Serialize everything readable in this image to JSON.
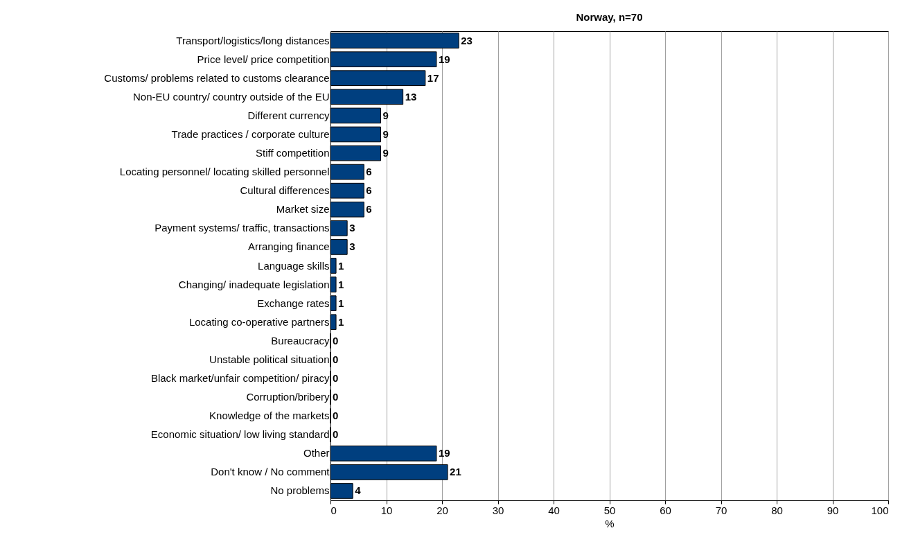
{
  "chart_data": {
    "type": "bar",
    "orientation": "horizontal",
    "title": "Norway, n=70",
    "xlabel": "%",
    "categories": [
      "Transport/logistics/long distances",
      "Price level/ price competition",
      "Customs/ problems related to customs clearance",
      "Non-EU country/ country outside of the EU",
      "Different currency",
      "Trade practices / corporate culture",
      "Stiff competition",
      "Locating personnel/ locating skilled personnel",
      "Cultural differences",
      "Market size",
      "Payment systems/ traffic, transactions",
      "Arranging finance",
      "Language skills",
      "Changing/ inadequate legislation",
      "Exchange rates",
      "Locating co-operative partners",
      "Bureaucracy",
      "Unstable political situation",
      "Black market/unfair competition/ piracy",
      "Corruption/bribery",
      "Knowledge of the markets",
      "Economic situation/ low living standard",
      "Other",
      "Don't know / No comment",
      "No problems"
    ],
    "values": [
      23,
      19,
      17,
      13,
      9,
      9,
      9,
      6,
      6,
      6,
      3,
      3,
      1,
      1,
      1,
      1,
      0,
      0,
      0,
      0,
      0,
      0,
      19,
      21,
      4
    ],
    "color": "#003f7f",
    "data_labels": true,
    "grid": "x",
    "xlim": [
      0,
      100
    ],
    "xticks": [
      0,
      10,
      20,
      30,
      40,
      50,
      60,
      70,
      80,
      90,
      100
    ]
  }
}
